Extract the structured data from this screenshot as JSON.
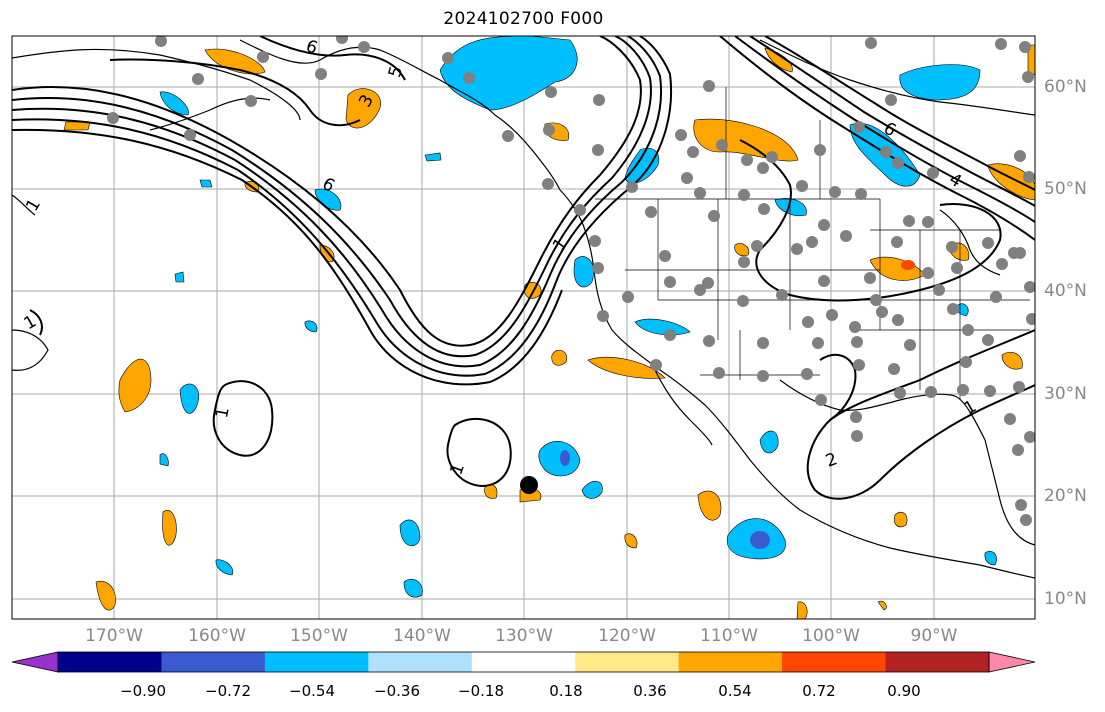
{
  "title": "2024102700 F000",
  "lat_labels": [
    "60°N",
    "50°N",
    "40°N",
    "30°N",
    "20°N",
    "10°N"
  ],
  "lon_labels": [
    "170°W",
    "160°W",
    "150°W",
    "140°W",
    "130°W",
    "120°W",
    "110°W",
    "100°W",
    "90°W"
  ],
  "contour_labels": [
    "1",
    "1",
    "1",
    "1",
    "1",
    "1",
    "2",
    "3",
    "5",
    "6",
    "6",
    "6",
    "4"
  ],
  "colorbar": {
    "ticks": [
      "−0.90",
      "−0.72",
      "−0.54",
      "−0.36",
      "−0.18",
      "0.18",
      "0.36",
      "0.54",
      "0.72",
      "0.90"
    ],
    "colors": [
      "#9932cc",
      "#00008b",
      "#3a5bd0",
      "#00bfff",
      "#b0e0ff",
      "#ffffff",
      "#ffe989",
      "#ffa500",
      "#ff4500",
      "#b22222",
      "#ff88aa"
    ]
  },
  "map_colors": {
    "land_outline": "#000000",
    "grid": "#aaaaaa",
    "station_dot": "#808080",
    "marker": "#000000"
  }
}
